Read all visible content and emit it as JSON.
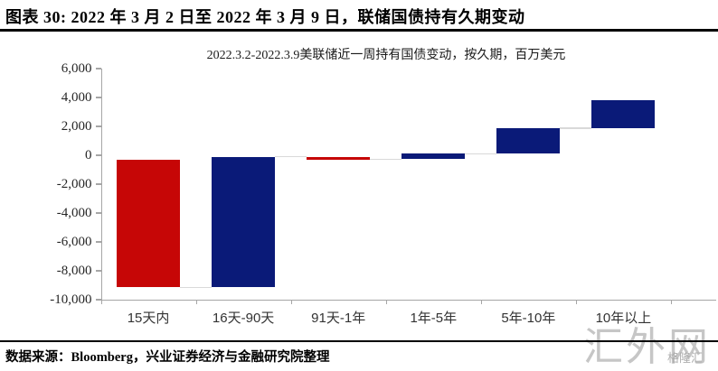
{
  "header": {
    "title": "图表 30: 2022 年 3 月 2 日至 2022 年 3 月 9 日，联储国债持有久期变动"
  },
  "chart_data": {
    "type": "bar",
    "subtype": "waterfall",
    "title": "2022.3.2-2022.3.9美联储近一周持有国债变动，按久期，百万美元",
    "unit": "百万美元",
    "categories": [
      "15天内",
      "16天-90天",
      "91天-1年",
      "1年-5年",
      "5年-10年",
      "10年以上"
    ],
    "bars": [
      {
        "category": "15天内",
        "from": -300,
        "to": -9150,
        "direction": "decrease"
      },
      {
        "category": "16天-90天",
        "from": -9150,
        "to": -100,
        "direction": "increase"
      },
      {
        "category": "91天-1年",
        "from": -100,
        "to": -300,
        "direction": "decrease"
      },
      {
        "category": "1年-5年",
        "from": -250,
        "to": 100,
        "direction": "increase"
      },
      {
        "category": "5年-10年",
        "from": 100,
        "to": 1850,
        "direction": "increase"
      },
      {
        "category": "10年以上",
        "from": 1900,
        "to": 3800,
        "direction": "increase"
      }
    ],
    "connectors": [
      {
        "between": [
          0,
          1
        ],
        "value": -9150
      },
      {
        "between": [
          1,
          2
        ],
        "value": -100
      },
      {
        "between": [
          2,
          3
        ],
        "value": -280
      },
      {
        "between": [
          3,
          4
        ],
        "value": 100
      },
      {
        "between": [
          4,
          5
        ],
        "value": 1880
      }
    ],
    "y_axis": {
      "min": -10000,
      "max": 6000,
      "tick_step": 2000,
      "tick_labels": [
        "6,000",
        "4,000",
        "2,000",
        "0",
        "-2,000",
        "-4,000",
        "-6,000",
        "-8,000",
        "-10,000"
      ]
    },
    "grid": "off",
    "legend": "none",
    "colors": {
      "decrease": "#c60606",
      "increase": "#0a1a78",
      "connector": "#d9d9d9",
      "axis": "#a6a6a6"
    }
  },
  "footer": {
    "source": "数据来源：Bloomberg，兴业证券经济与金融研究院整理"
  },
  "watermark": {
    "large": "汇外网",
    "small": "格隆汇"
  }
}
